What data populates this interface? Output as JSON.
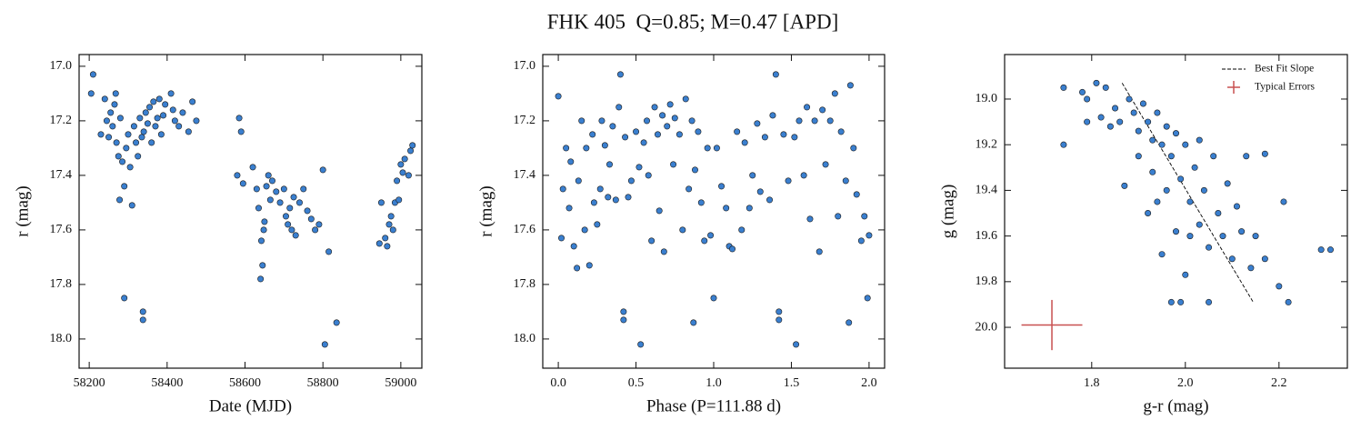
{
  "title": "FHK 405  Q=0.85; M=0.47 [APD]",
  "chart_data": [
    {
      "type": "scatter",
      "xlabel": "Date (MJD)",
      "ylabel": "r (mag)",
      "color": "#3a7fcf",
      "xlim": [
        58174,
        59054
      ],
      "ylim": [
        18.107,
        16.957
      ],
      "xticks": [
        58200,
        58400,
        58600,
        58800,
        59000
      ],
      "yticks": [
        {
          "value": 17.0,
          "label": "17.0"
        },
        17.2,
        17.4,
        17.6,
        17.8,
        {
          "value": 18.0,
          "label": "18.0"
        }
      ],
      "x": [
        58210,
        58205,
        58230,
        58240,
        58245,
        58250,
        58255,
        58260,
        58265,
        58268,
        58270,
        58275,
        58278,
        58280,
        58285,
        58290,
        58290,
        58295,
        58300,
        58305,
        58310,
        58315,
        58320,
        58325,
        58330,
        58335,
        58338,
        58338,
        58340,
        58345,
        58350,
        58355,
        58360,
        58365,
        58370,
        58375,
        58380,
        58385,
        58390,
        58395,
        58410,
        58415,
        58420,
        58430,
        58440,
        58455,
        58465,
        58475,
        58580,
        58585,
        58590,
        58595,
        58620,
        58630,
        58635,
        58640,
        58642,
        58645,
        58648,
        58650,
        58655,
        58660,
        58665,
        58670,
        58680,
        58690,
        58700,
        58705,
        58710,
        58715,
        58720,
        58725,
        58730,
        58740,
        58750,
        58760,
        58770,
        58780,
        58790,
        58800,
        58805,
        58815,
        58835,
        58945,
        58950,
        58960,
        58965,
        58970,
        58975,
        58980,
        58985,
        58990,
        58995,
        59000,
        59005,
        59010,
        59020,
        59025,
        59030
      ],
      "values": [
        17.03,
        17.1,
        17.25,
        17.12,
        17.2,
        17.26,
        17.17,
        17.22,
        17.14,
        17.1,
        17.28,
        17.33,
        17.49,
        17.19,
        17.35,
        17.44,
        17.85,
        17.3,
        17.25,
        17.37,
        17.51,
        17.22,
        17.28,
        17.33,
        17.19,
        17.26,
        17.9,
        17.93,
        17.24,
        17.17,
        17.21,
        17.15,
        17.28,
        17.13,
        17.22,
        17.19,
        17.12,
        17.25,
        17.18,
        17.14,
        17.1,
        17.16,
        17.2,
        17.22,
        17.17,
        17.24,
        17.13,
        17.2,
        17.4,
        17.19,
        17.24,
        17.43,
        17.37,
        17.45,
        17.52,
        17.78,
        17.64,
        17.73,
        17.6,
        17.57,
        17.44,
        17.4,
        17.49,
        17.42,
        17.46,
        17.5,
        17.45,
        17.55,
        17.58,
        17.52,
        17.6,
        17.48,
        17.62,
        17.5,
        17.45,
        17.53,
        17.56,
        17.6,
        17.58,
        17.38,
        18.02,
        17.68,
        17.94,
        17.65,
        17.5,
        17.63,
        17.66,
        17.58,
        17.55,
        17.6,
        17.5,
        17.42,
        17.49,
        17.36,
        17.39,
        17.34,
        17.4,
        17.31,
        17.29
      ]
    },
    {
      "type": "scatter",
      "xlabel": "Phase (P=111.88 d)",
      "ylabel": "r (mag)",
      "color": "#3a7fcf",
      "xlim": [
        -0.1,
        2.1
      ],
      "ylim": [
        18.107,
        16.957
      ],
      "xticks": [
        {
          "value": 0.0,
          "label": "0.0"
        },
        0.5,
        {
          "value": 1.0,
          "label": "1.0"
        },
        1.5,
        {
          "value": 2.0,
          "label": "2.0"
        }
      ],
      "yticks": [
        {
          "value": 17.0,
          "label": "17.0"
        },
        17.2,
        17.4,
        17.6,
        17.8,
        {
          "value": 18.0,
          "label": "18.0"
        }
      ],
      "x": [
        0.0,
        0.02,
        0.03,
        0.05,
        0.07,
        0.08,
        0.1,
        0.12,
        0.13,
        0.15,
        0.17,
        0.18,
        0.2,
        0.22,
        0.23,
        0.25,
        0.27,
        0.28,
        0.3,
        0.32,
        0.33,
        0.35,
        0.37,
        0.39,
        0.4,
        0.42,
        0.42,
        0.43,
        0.45,
        0.47,
        0.5,
        0.52,
        0.53,
        0.55,
        0.57,
        0.58,
        0.6,
        0.62,
        0.64,
        0.65,
        0.67,
        0.68,
        0.7,
        0.72,
        0.74,
        0.75,
        0.78,
        0.8,
        0.82,
        0.84,
        0.86,
        0.87,
        0.88,
        0.9,
        0.92,
        0.94,
        0.96,
        0.98,
        1.0,
        1.02,
        1.05,
        1.08,
        1.1,
        1.12,
        1.15,
        1.18,
        1.2,
        1.23,
        1.25,
        1.28,
        1.3,
        1.33,
        1.36,
        1.38,
        1.4,
        1.42,
        1.42,
        1.45,
        1.48,
        1.52,
        1.53,
        1.55,
        1.58,
        1.6,
        1.62,
        1.65,
        1.68,
        1.7,
        1.72,
        1.75,
        1.78,
        1.8,
        1.82,
        1.85,
        1.87,
        1.88,
        1.9,
        1.92,
        1.95,
        1.97,
        1.99,
        2.0
      ],
      "values": [
        17.11,
        17.63,
        17.45,
        17.3,
        17.52,
        17.35,
        17.66,
        17.74,
        17.42,
        17.2,
        17.6,
        17.3,
        17.73,
        17.25,
        17.5,
        17.58,
        17.45,
        17.2,
        17.29,
        17.48,
        17.36,
        17.22,
        17.49,
        17.15,
        17.03,
        17.9,
        17.93,
        17.26,
        17.48,
        17.42,
        17.24,
        17.37,
        18.02,
        17.28,
        17.2,
        17.4,
        17.64,
        17.15,
        17.25,
        17.53,
        17.18,
        17.68,
        17.22,
        17.14,
        17.36,
        17.19,
        17.25,
        17.6,
        17.12,
        17.45,
        17.2,
        17.94,
        17.38,
        17.24,
        17.5,
        17.64,
        17.3,
        17.62,
        17.85,
        17.3,
        17.44,
        17.52,
        17.66,
        17.67,
        17.24,
        17.6,
        17.28,
        17.52,
        17.4,
        17.21,
        17.46,
        17.26,
        17.49,
        17.18,
        17.03,
        17.9,
        17.93,
        17.25,
        17.42,
        17.26,
        18.02,
        17.2,
        17.4,
        17.15,
        17.56,
        17.2,
        17.68,
        17.16,
        17.36,
        17.2,
        17.1,
        17.55,
        17.24,
        17.42,
        17.94,
        17.07,
        17.3,
        17.47,
        17.64,
        17.55,
        17.85,
        17.62
      ]
    },
    {
      "type": "scatter",
      "xlabel": "g-r (mag)",
      "ylabel": "g (mag)",
      "color": "#3a7fcf",
      "xlim": [
        1.614,
        2.346
      ],
      "ylim": [
        20.179,
        18.805
      ],
      "xticks": [
        1.8,
        {
          "value": 2.0,
          "label": "2.0"
        },
        2.2
      ],
      "yticks": [
        {
          "value": 19.0,
          "label": "19.0"
        },
        19.2,
        19.4,
        19.6,
        19.8,
        {
          "value": 20.0,
          "label": "20.0"
        }
      ],
      "x": [
        1.74,
        1.74,
        1.78,
        1.79,
        1.79,
        1.81,
        1.82,
        1.83,
        1.84,
        1.85,
        1.86,
        1.87,
        1.88,
        1.89,
        1.9,
        1.9,
        1.91,
        1.92,
        1.92,
        1.93,
        1.93,
        1.94,
        1.94,
        1.95,
        1.95,
        1.96,
        1.96,
        1.97,
        1.97,
        1.98,
        1.98,
        1.99,
        1.99,
        2.0,
        2.0,
        2.01,
        2.01,
        2.02,
        2.03,
        2.03,
        2.04,
        2.05,
        2.05,
        2.06,
        2.07,
        2.08,
        2.09,
        2.1,
        2.11,
        2.12,
        2.13,
        2.14,
        2.15,
        2.17,
        2.17,
        2.2,
        2.21,
        2.22,
        2.29,
        2.31
      ],
      "values": [
        18.95,
        19.2,
        18.97,
        19.0,
        19.1,
        18.93,
        19.08,
        18.95,
        19.12,
        19.04,
        19.1,
        19.38,
        19.0,
        19.06,
        19.14,
        19.25,
        19.02,
        19.1,
        19.5,
        19.18,
        19.32,
        19.06,
        19.45,
        19.2,
        19.68,
        19.12,
        19.4,
        19.89,
        19.25,
        19.58,
        19.15,
        19.35,
        19.89,
        19.2,
        19.77,
        19.45,
        19.6,
        19.3,
        19.18,
        19.55,
        19.4,
        19.65,
        19.89,
        19.25,
        19.5,
        19.6,
        19.37,
        19.7,
        19.47,
        19.58,
        19.25,
        19.74,
        19.6,
        19.24,
        19.7,
        19.82,
        19.45,
        19.89,
        19.66,
        19.66
      ],
      "line": {
        "name": "Best Fit Slope",
        "color": "#000000",
        "x": [
          1.865,
          2.145
        ],
        "values": [
          18.93,
          19.89
        ]
      },
      "errorbar": {
        "name": "Typical Errors",
        "color": "#c85050",
        "x": 1.715,
        "y": 19.99,
        "xerr": 0.065,
        "yerr": 0.11
      },
      "legend": "upper right"
    }
  ]
}
